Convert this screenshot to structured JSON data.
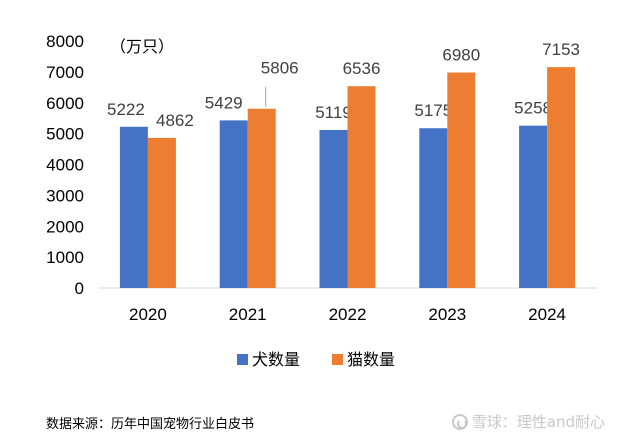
{
  "chart_data": {
    "type": "bar",
    "unit_label": "（万只）",
    "categories": [
      "2020",
      "2021",
      "2022",
      "2023",
      "2024"
    ],
    "series": [
      {
        "name": "犬数量",
        "values": [
          5222,
          5429,
          5119,
          5175,
          5258
        ],
        "color": "#4472C4"
      },
      {
        "name": "猫数量",
        "values": [
          4862,
          5806,
          6536,
          6980,
          7153
        ],
        "color": "#ED7D31"
      }
    ],
    "ylim": [
      0,
      8000
    ],
    "yticks": [
      0,
      1000,
      2000,
      3000,
      4000,
      5000,
      6000,
      7000,
      8000
    ],
    "grid": false,
    "legend_position": "bottom"
  },
  "source_text": "数据来源：历年中国宠物行业白皮书",
  "watermark_text": "雪球：理性and耐心"
}
